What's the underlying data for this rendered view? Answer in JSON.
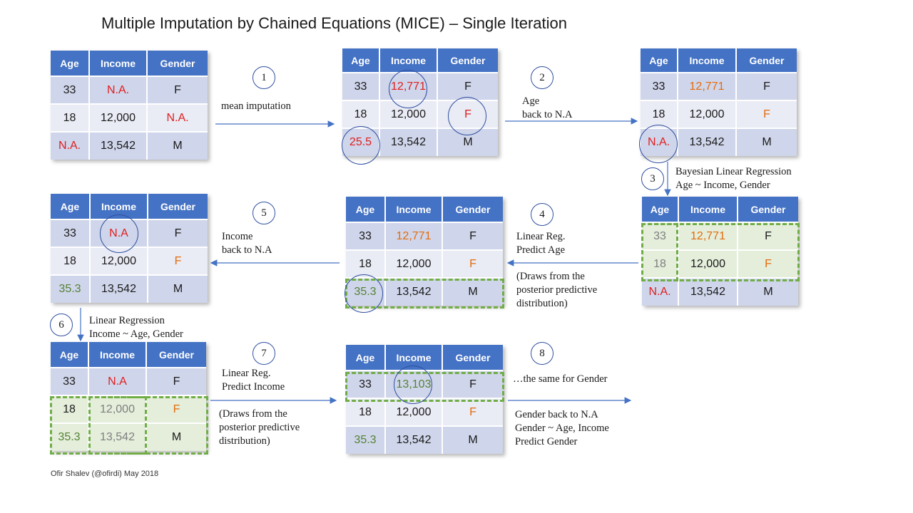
{
  "title": "Multiple Imputation by Chained Equations (MICE) – Single Iteration",
  "credit": "Ofir Shalev (@ofirdi) May 2018",
  "headers": [
    "Age",
    "Income",
    "Gender"
  ],
  "colors": {
    "header": "#4472c4",
    "missing": "#e01e1e",
    "imputed_mean": "#e46c0a",
    "predicted": "#548235",
    "training_box": "#70ad47",
    "circle": "#2f4f9f"
  },
  "tables": [
    {
      "rows": [
        [
          "33",
          "N.A.",
          "F"
        ],
        [
          "18",
          "12,000",
          "N.A."
        ],
        [
          "N.A.",
          "13,542",
          "M"
        ]
      ]
    },
    {
      "rows": [
        [
          "33",
          "12,771",
          "F"
        ],
        [
          "18",
          "12,000",
          "F"
        ],
        [
          "25.5",
          "13,542",
          "M"
        ]
      ]
    },
    {
      "rows": [
        [
          "33",
          "12,771",
          "F"
        ],
        [
          "18",
          "12,000",
          "F"
        ],
        [
          "N.A.",
          "13,542",
          "M"
        ]
      ]
    },
    {
      "rows": [
        [
          "33",
          "12,771",
          "F"
        ],
        [
          "18",
          "12,000",
          "F"
        ],
        [
          "N.A.",
          "13,542",
          "M"
        ]
      ]
    },
    {
      "rows": [
        [
          "33",
          "12,771",
          "F"
        ],
        [
          "18",
          "12,000",
          "F"
        ],
        [
          "35.3",
          "13,542",
          "M"
        ]
      ]
    },
    {
      "rows": [
        [
          "33",
          "N.A",
          "F"
        ],
        [
          "18",
          "12,000",
          "F"
        ],
        [
          "35.3",
          "13,542",
          "M"
        ]
      ]
    },
    {
      "rows": [
        [
          "33",
          "N.A",
          "F"
        ],
        [
          "18",
          "12,000",
          "F"
        ],
        [
          "35.3",
          "13,542",
          "M"
        ]
      ]
    },
    {
      "rows": [
        [
          "33",
          "13,103",
          "F"
        ],
        [
          "18",
          "12,000",
          "F"
        ],
        [
          "35.3",
          "13,542",
          "M"
        ]
      ]
    }
  ],
  "steps": [
    "1",
    "2",
    "3",
    "4",
    "5",
    "6",
    "7",
    "8"
  ],
  "notes": {
    "s1": "mean imputation",
    "s2_l1": "Age",
    "s2_l2": "back to N.A",
    "s3_l1": "Bayesian Linear Regression",
    "s3_l2": "Age ~ Income, Gender",
    "s4_l1": "Linear Reg.",
    "s4_l2": "Predict Age",
    "s4_l3": "(Draws from the",
    "s4_l4": "posterior predictive",
    "s4_l5": "distribution)",
    "s5_l1": "Income",
    "s5_l2": "back to N.A",
    "s6_l1": "Linear Regression",
    "s6_l2": "Income ~ Age, Gender",
    "s7_l1": "Linear Reg.",
    "s7_l2": "Predict Income",
    "s7_l3": "(Draws from the",
    "s7_l4": "posterior predictive",
    "s7_l5": "distribution)",
    "s8_l1": "…the same for Gender",
    "s8_l2": "Gender back to N.A",
    "s8_l3": "Gender ~ Age, Income",
    "s8_l4": "Predict Gender"
  }
}
